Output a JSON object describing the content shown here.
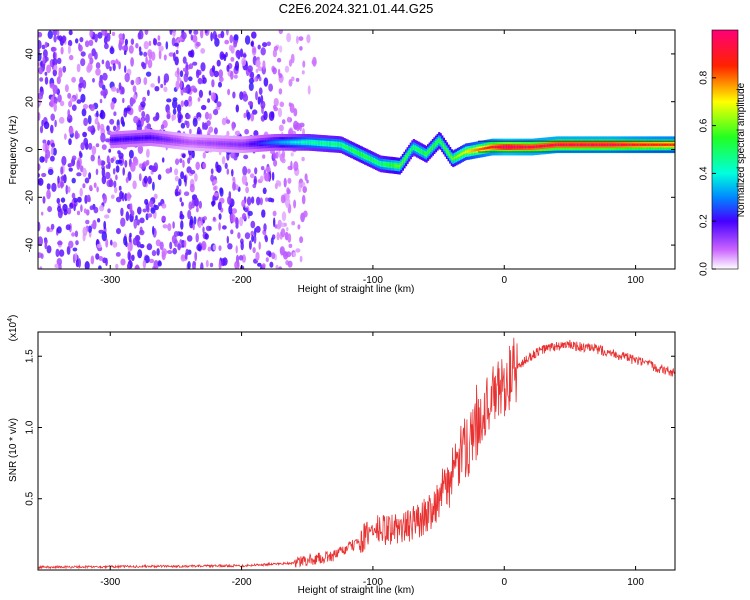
{
  "title": "C2E6.2024.321.01.44.G25",
  "chart_data": [
    {
      "type": "heatmap",
      "xlabel": "Height of straight line (km)",
      "ylabel": "Frequency (Hz)",
      "xlim": [
        -355,
        130
      ],
      "ylim": [
        -50,
        50
      ],
      "xticks": [
        -300,
        -200,
        -100,
        0,
        100
      ],
      "yticks": [
        40,
        20,
        0,
        -20,
        -40
      ],
      "colorbar": {
        "label": "Normalized spectral amplitude",
        "ticks": [
          "0.0",
          "0.2",
          "0.4",
          "0.6",
          "0.8"
        ],
        "range": [
          0,
          1
        ]
      },
      "ridge": {
        "x": [
          -300,
          -270,
          -240,
          -200,
          -175,
          -150,
          -125,
          -110,
          -95,
          -80,
          -70,
          -60,
          -50,
          -40,
          -30,
          -20,
          -10,
          0,
          20,
          40,
          60,
          80,
          100,
          130
        ],
        "y": [
          4,
          5,
          3,
          2,
          3,
          3,
          2,
          -2,
          -6,
          -7,
          1,
          -2,
          4,
          -4,
          -1,
          0,
          1,
          1,
          1,
          2,
          2,
          2,
          2,
          2
        ],
        "amplitude": [
          0.2,
          0.2,
          0.1,
          0.15,
          0.3,
          0.45,
          0.5,
          0.55,
          0.5,
          0.6,
          0.5,
          0.55,
          0.55,
          0.6,
          0.7,
          0.8,
          0.9,
          1.0,
          0.95,
          0.95,
          0.95,
          0.95,
          0.9,
          0.85
        ]
      },
      "noise": {
        "x_end": -175,
        "x_fade": -140
      }
    },
    {
      "type": "line",
      "xlabel": "Height of straight line (km)",
      "ylabel": "SNR (10 * v/v)",
      "y_multiplier": "(x10",
      "y_multiplier_exp": "4",
      "y_multiplier_close": ")",
      "xlim": [
        -355,
        130
      ],
      "ylim": [
        0,
        1.67
      ],
      "xticks": [
        -300,
        -200,
        -100,
        0,
        100
      ],
      "yticks": [
        "0.5",
        "1.0",
        "1.5"
      ],
      "ytick_values": [
        0.5,
        1.0,
        1.5
      ],
      "color": "#e83232",
      "series": [
        {
          "x": [
            -355,
            -200,
            -160,
            -130,
            -110,
            -100,
            -90,
            -75,
            -60,
            -50,
            -40,
            -30,
            -20,
            -10,
            0,
            10,
            20,
            30,
            40,
            50,
            60,
            70,
            80,
            90,
            100,
            110,
            120,
            130
          ],
          "y": [
            0.02,
            0.03,
            0.05,
            0.1,
            0.2,
            0.28,
            0.28,
            0.3,
            0.38,
            0.5,
            0.65,
            0.85,
            1.05,
            1.2,
            1.3,
            1.42,
            1.5,
            1.55,
            1.57,
            1.58,
            1.56,
            1.55,
            1.53,
            1.5,
            1.47,
            1.44,
            1.41,
            1.38
          ]
        }
      ]
    }
  ]
}
